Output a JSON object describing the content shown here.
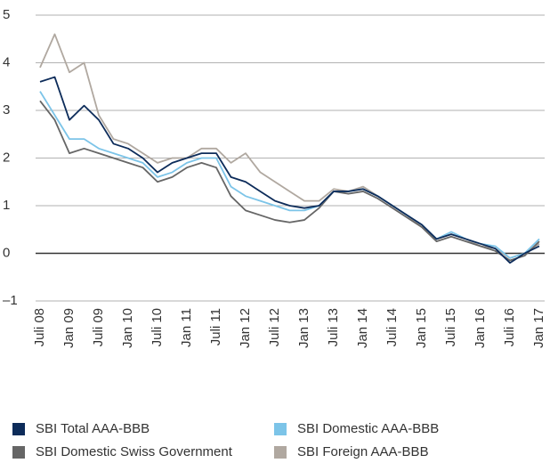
{
  "chart_data": {
    "type": "line",
    "categories": [
      "Juli 08",
      null,
      "Jan 09",
      null,
      "Juli 09",
      null,
      "Jan 10",
      null,
      "Juli 10",
      null,
      "Jan 11",
      null,
      "Juli 11",
      null,
      "Jan 12",
      null,
      "Juli 12",
      null,
      "Jan 13",
      null,
      "Juli 13",
      null,
      "Jan 14",
      null,
      "Juli 14",
      null,
      "Jan 15",
      null,
      "Juli 15",
      null,
      "Jan 16",
      null,
      "Juli 16",
      null,
      "Jan 17"
    ],
    "series": [
      {
        "name": "SBI Total AAA-BBB",
        "color": "#0d2c5a",
        "values": [
          3.6,
          3.7,
          2.8,
          3.1,
          2.8,
          2.3,
          2.2,
          2.0,
          1.7,
          1.9,
          2.0,
          2.1,
          2.1,
          1.6,
          1.5,
          1.3,
          1.1,
          1.0,
          0.95,
          1.0,
          1.3,
          1.3,
          1.35,
          1.2,
          1.0,
          0.8,
          0.6,
          0.3,
          0.4,
          0.3,
          0.2,
          0.1,
          -0.2,
          0.0,
          0.15
        ]
      },
      {
        "name": "SBI Domestic AAA-BBB",
        "color": "#7cc4e8",
        "values": [
          3.4,
          2.9,
          2.4,
          2.4,
          2.2,
          2.1,
          2.0,
          1.9,
          1.6,
          1.7,
          1.9,
          2.0,
          2.0,
          1.4,
          1.2,
          1.1,
          1.0,
          0.9,
          0.9,
          1.0,
          1.3,
          1.3,
          1.35,
          1.2,
          1.0,
          0.8,
          0.6,
          0.3,
          0.45,
          0.3,
          0.2,
          0.15,
          -0.1,
          0.0,
          0.3
        ]
      },
      {
        "name": "SBI Domestic Swiss Government",
        "color": "#666666",
        "values": [
          3.2,
          2.8,
          2.1,
          2.2,
          2.1,
          2.0,
          1.9,
          1.8,
          1.5,
          1.6,
          1.8,
          1.9,
          1.8,
          1.2,
          0.9,
          0.8,
          0.7,
          0.65,
          0.7,
          0.95,
          1.3,
          1.25,
          1.3,
          1.15,
          0.95,
          0.75,
          0.55,
          0.25,
          0.35,
          0.25,
          0.15,
          0.05,
          -0.15,
          -0.05,
          0.25
        ]
      },
      {
        "name": "SBI Foreign AAA-BBB",
        "color": "#b0a8a0",
        "values": [
          3.9,
          4.6,
          3.8,
          4.0,
          2.9,
          2.4,
          2.3,
          2.1,
          1.9,
          2.0,
          2.0,
          2.2,
          2.2,
          1.9,
          2.1,
          1.7,
          1.5,
          1.3,
          1.1,
          1.1,
          1.35,
          1.3,
          1.4,
          1.2,
          1.0,
          0.8,
          0.55,
          0.3,
          0.4,
          0.3,
          0.15,
          0.1,
          -0.1,
          0.0,
          0.2
        ]
      }
    ],
    "ylim": [
      -1,
      5
    ],
    "yticks": [
      {
        "value": -1,
        "label": "–1"
      },
      0,
      1,
      2,
      3,
      4,
      5
    ],
    "grid": true,
    "legend": "bottom"
  }
}
